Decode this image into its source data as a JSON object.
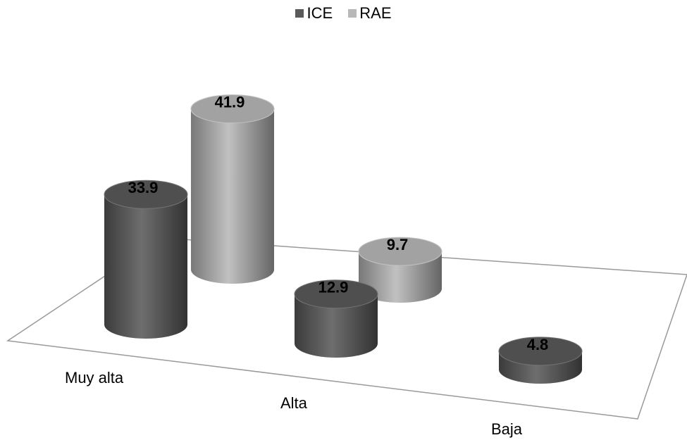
{
  "chart_data": {
    "type": "bar",
    "style": "3d-cylinder",
    "categories": [
      "Muy alta",
      "Alta",
      "Baja"
    ],
    "series": [
      {
        "name": "ICE",
        "values": [
          33.9,
          12.9,
          4.8
        ],
        "color": "#5a5a5a"
      },
      {
        "name": "RAE",
        "values": [
          41.9,
          9.7,
          null
        ],
        "color": "#b8b8b8"
      }
    ],
    "data_labels": true,
    "legend": "top-center",
    "grid": false
  }
}
